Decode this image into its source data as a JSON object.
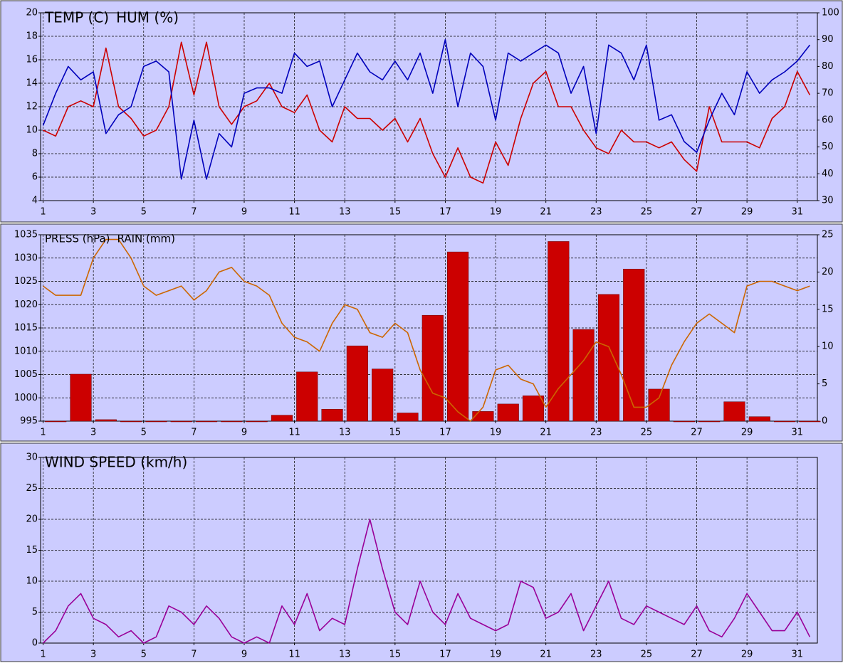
{
  "chart_data": [
    {
      "type": "line",
      "x": [
        1,
        1.5,
        2,
        2.5,
        3,
        3.5,
        4,
        4.5,
        5,
        5.5,
        6,
        6.5,
        7,
        7.5,
        8,
        8.5,
        9,
        9.5,
        10,
        10.5,
        11,
        11.5,
        12,
        12.5,
        13,
        13.5,
        14,
        14.5,
        15,
        15.5,
        16,
        16.5,
        17,
        17.5,
        18,
        18.5,
        19,
        19.5,
        20,
        20.5,
        21,
        21.5,
        22,
        22.5,
        23,
        23.5,
        24,
        24.5,
        25,
        25.5,
        26,
        26.5,
        27,
        27.5,
        28,
        28.5,
        29,
        29.5,
        30,
        30.5,
        31,
        31.5
      ],
      "xlim": [
        0.9,
        31.8
      ],
      "xticks": [
        1,
        3,
        5,
        7,
        9,
        11,
        13,
        15,
        17,
        19,
        21,
        23,
        25,
        27,
        29,
        31
      ],
      "ylim": [
        4,
        20
      ],
      "yticks": [
        4,
        6,
        8,
        10,
        12,
        14,
        16,
        18,
        20
      ],
      "y2lim": [
        30,
        100
      ],
      "y2ticks": [
        30,
        40,
        50,
        60,
        70,
        80,
        90,
        100
      ],
      "grid": true,
      "series": [
        {
          "name": "TEMP (C)",
          "color": "#cc0000",
          "values": [
            10,
            9.5,
            12,
            12.5,
            12,
            17,
            12,
            11,
            9.5,
            10,
            12,
            17.5,
            13,
            17.5,
            12,
            10.5,
            12,
            12.5,
            14,
            12,
            11.5,
            13,
            10,
            9,
            12,
            11,
            11,
            10,
            11,
            9,
            11,
            8,
            6,
            8.5,
            6,
            5.5,
            9,
            7,
            11,
            14,
            15,
            12,
            12,
            10,
            8.5,
            8,
            10,
            9,
            9,
            8.5,
            9,
            7.5,
            6.5,
            12,
            9,
            9,
            9,
            8.5,
            11,
            12,
            15,
            13
          ]
        },
        {
          "name": "HUM (%)",
          "color": "#0000bb",
          "axis": "y2",
          "values": [
            58,
            70,
            80,
            75,
            78,
            55,
            62,
            65,
            80,
            82,
            78,
            38,
            60,
            38,
            55,
            50,
            70,
            72,
            72,
            70,
            85,
            80,
            82,
            65,
            75,
            85,
            78,
            75,
            82,
            75,
            85,
            70,
            90,
            65,
            85,
            80,
            60,
            85,
            82,
            85,
            88,
            85,
            70,
            80,
            55,
            88,
            85,
            75,
            88,
            60,
            62,
            52,
            48,
            60,
            70,
            62,
            78,
            70,
            75,
            78,
            82,
            88
          ]
        }
      ]
    },
    {
      "type": "combo",
      "x": [
        1,
        1.5,
        2,
        2.5,
        3,
        3.5,
        4,
        4.5,
        5,
        5.5,
        6,
        6.5,
        7,
        7.5,
        8,
        8.5,
        9,
        9.5,
        10,
        10.5,
        11,
        11.5,
        12,
        12.5,
        13,
        13.5,
        14,
        14.5,
        15,
        15.5,
        16,
        16.5,
        17,
        17.5,
        18,
        18.5,
        19,
        19.5,
        20,
        20.5,
        21,
        21.5,
        22,
        22.5,
        23,
        23.5,
        24,
        24.5,
        25,
        25.5,
        26,
        26.5,
        27,
        27.5,
        28,
        28.5,
        29,
        29.5,
        30,
        30.5,
        31,
        31.5
      ],
      "xlim": [
        0.9,
        31.8
      ],
      "xticks": [
        1,
        3,
        5,
        7,
        9,
        11,
        13,
        15,
        17,
        19,
        21,
        23,
        25,
        27,
        29,
        31
      ],
      "ylim": [
        995,
        1035
      ],
      "yticks": [
        995,
        1000,
        1005,
        1010,
        1015,
        1020,
        1025,
        1030,
        1035
      ],
      "y2lim": [
        0,
        25
      ],
      "y2ticks": [
        0,
        5,
        10,
        15,
        20,
        25
      ],
      "grid": true,
      "series": [
        {
          "name": "PRESS (hPa)",
          "color": "#cc6600",
          "type": "line",
          "values": [
            1024,
            1022,
            1022,
            1022,
            1030,
            1034,
            1034,
            1030,
            1024,
            1022,
            1023,
            1024,
            1021,
            1023,
            1027,
            1028,
            1025,
            1024,
            1022,
            1016,
            1013,
            1012,
            1010,
            1016,
            1020,
            1019,
            1014,
            1013,
            1016,
            1014,
            1006,
            1001,
            1000,
            997,
            995,
            998,
            1006,
            1007,
            1004,
            1003,
            998,
            1002,
            1005,
            1008,
            1012,
            1011,
            1005,
            998,
            998,
            1000,
            1007,
            1012,
            1016,
            1018,
            1016,
            1014,
            1024,
            1025,
            1025,
            1024,
            1023,
            1024
          ]
        },
        {
          "name": "RAIN (mm)",
          "color": "#cc0000",
          "type": "bar",
          "axis": "y2",
          "x": [
            1,
            2,
            3,
            4,
            5,
            6,
            7,
            8,
            9,
            10,
            11,
            12,
            13,
            14,
            15,
            16,
            17,
            18,
            19,
            20,
            21,
            22,
            23,
            24,
            25,
            26,
            27,
            28,
            29,
            30,
            31
          ],
          "values": [
            0,
            6.3,
            0.2,
            0,
            0,
            0,
            0,
            0,
            0,
            0.8,
            6.6,
            1.6,
            10.1,
            7.0,
            1.1,
            14.2,
            22.7,
            1.3,
            2.3,
            3.4,
            24.1,
            12.3,
            17.0,
            20.4,
            4.3,
            0,
            0,
            2.6,
            0.6,
            0,
            0
          ]
        }
      ]
    },
    {
      "type": "line",
      "x": [
        1,
        1.5,
        2,
        2.5,
        3,
        3.5,
        4,
        4.5,
        5,
        5.5,
        6,
        6.5,
        7,
        7.5,
        8,
        8.5,
        9,
        9.5,
        10,
        10.5,
        11,
        11.5,
        12,
        12.5,
        13,
        13.5,
        14,
        14.5,
        15,
        15.5,
        16,
        16.5,
        17,
        17.5,
        18,
        18.5,
        19,
        19.5,
        20,
        20.5,
        21,
        21.5,
        22,
        22.5,
        23,
        23.5,
        24,
        24.5,
        25,
        25.5,
        26,
        26.5,
        27,
        27.5,
        28,
        28.5,
        29,
        29.5,
        30,
        30.5,
        31,
        31.5
      ],
      "xlim": [
        0.9,
        31.8
      ],
      "xticks": [
        1,
        3,
        5,
        7,
        9,
        11,
        13,
        15,
        17,
        19,
        21,
        23,
        25,
        27,
        29,
        31
      ],
      "ylim": [
        0,
        30
      ],
      "yticks": [
        0,
        5,
        10,
        15,
        20,
        25,
        30
      ],
      "grid": true,
      "series": [
        {
          "name": "WIND SPEED (km/h)",
          "color": "#990099",
          "values": [
            0,
            2,
            6,
            8,
            4,
            3,
            1,
            2,
            0,
            1,
            6,
            5,
            3,
            6,
            4,
            1,
            0,
            1,
            0,
            6,
            3,
            8,
            2,
            4,
            3,
            12,
            20,
            12,
            5,
            3,
            10,
            5,
            3,
            8,
            4,
            3,
            2,
            3,
            10,
            9,
            4,
            5,
            8,
            2,
            6,
            10,
            4,
            3,
            6,
            5,
            4,
            3,
            6,
            2,
            1,
            4,
            8,
            5,
            2,
            2,
            5,
            1
          ]
        }
      ]
    }
  ]
}
